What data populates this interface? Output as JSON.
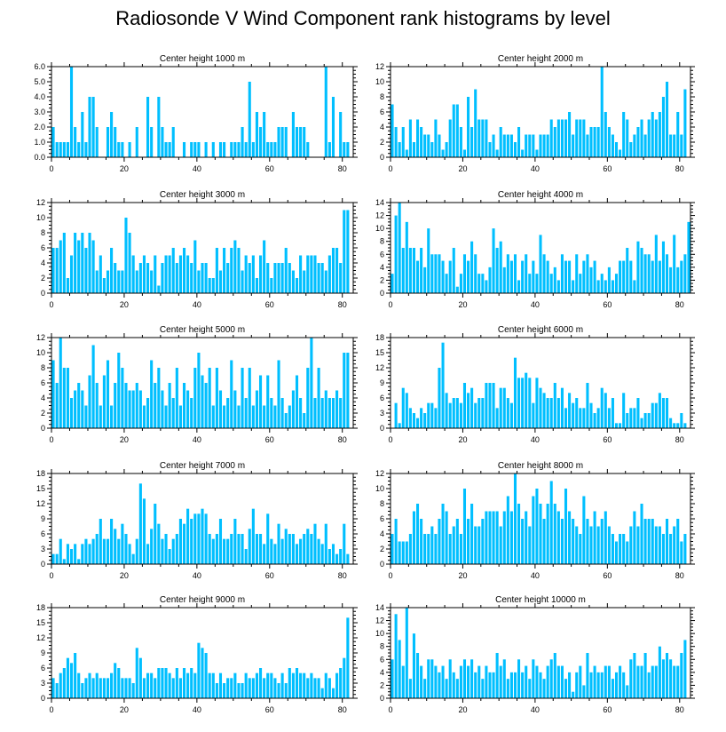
{
  "title": "Radiosonde V Wind Component rank histograms by level",
  "bar_color": "#00bfff",
  "chart_data": [
    {
      "type": "bar",
      "title": "Center height 1000 m",
      "xlim": [
        0,
        83
      ],
      "ylim": [
        0,
        6
      ],
      "yticks": [
        "0.0",
        "1.0",
        "2.0",
        "3.0",
        "4.0",
        "5.0",
        "6.0"
      ],
      "ytick_values": [
        0,
        1,
        2,
        3,
        4,
        5,
        6
      ],
      "xticks": [
        "0",
        "20",
        "40",
        "60",
        "80"
      ],
      "xtick_values": [
        0,
        20,
        40,
        60,
        80
      ],
      "values": [
        2,
        1,
        1,
        1,
        1,
        6,
        2,
        1,
        3,
        1,
        4,
        4,
        2,
        0,
        0,
        2,
        3,
        2,
        1,
        1,
        0,
        1,
        0,
        2,
        0,
        0,
        4,
        2,
        0,
        4,
        2,
        1,
        1,
        2,
        0,
        0,
        1,
        0,
        1,
        1,
        1,
        0,
        1,
        0,
        1,
        0,
        1,
        1,
        0,
        1,
        1,
        1,
        2,
        1,
        5,
        1,
        3,
        2,
        3,
        1,
        1,
        1,
        2,
        2,
        2,
        0,
        3,
        2,
        2,
        2,
        1,
        0,
        0,
        0,
        0,
        6,
        1,
        4,
        0,
        3,
        1,
        1
      ]
    },
    {
      "type": "bar",
      "title": "Center height 2000 m",
      "xlim": [
        0,
        83
      ],
      "ylim": [
        0,
        12
      ],
      "yticks": [
        "0",
        "2",
        "4",
        "6",
        "8",
        "10",
        "12"
      ],
      "ytick_values": [
        0,
        2,
        4,
        6,
        8,
        10,
        12
      ],
      "xticks": [
        "0",
        "20",
        "40",
        "60",
        "80"
      ],
      "xtick_values": [
        0,
        20,
        40,
        60,
        80
      ],
      "values": [
        7,
        4,
        2,
        4,
        1,
        5,
        2,
        5,
        4,
        3,
        3,
        2,
        5,
        3,
        1,
        2,
        5,
        7,
        7,
        4,
        1,
        8,
        4,
        9,
        5,
        5,
        5,
        2,
        3,
        1,
        4,
        3,
        3,
        3,
        2,
        4,
        1,
        3,
        3,
        3,
        1,
        3,
        3,
        3,
        5,
        4,
        5,
        5,
        5,
        6,
        3,
        5,
        5,
        5,
        3,
        4,
        4,
        4,
        12,
        6,
        4,
        3,
        2,
        1,
        6,
        5,
        2,
        3,
        4,
        5,
        3,
        5,
        6,
        5,
        6,
        8,
        10,
        3,
        3,
        6,
        3,
        9
      ]
    },
    {
      "type": "bar",
      "title": "Center height 3000 m",
      "xlim": [
        0,
        83
      ],
      "ylim": [
        0,
        12
      ],
      "yticks": [
        "0",
        "2",
        "4",
        "6",
        "8",
        "10",
        "12"
      ],
      "ytick_values": [
        0,
        2,
        4,
        6,
        8,
        10,
        12
      ],
      "xticks": [
        "0",
        "20",
        "40",
        "60",
        "80"
      ],
      "xtick_values": [
        0,
        20,
        40,
        60,
        80
      ],
      "values": [
        6,
        6,
        7,
        8,
        2,
        5,
        8,
        7,
        8,
        6,
        8,
        7,
        3,
        5,
        2,
        3,
        6,
        4,
        3,
        3,
        10,
        8,
        5,
        3,
        4,
        5,
        4,
        3,
        5,
        1,
        4,
        5,
        5,
        6,
        4,
        5,
        6,
        5,
        4,
        7,
        3,
        4,
        4,
        2,
        2,
        6,
        3,
        6,
        4,
        6,
        7,
        6,
        3,
        5,
        4,
        5,
        2,
        5,
        7,
        4,
        2,
        4,
        4,
        4,
        6,
        4,
        3,
        2,
        5,
        3,
        5,
        5,
        5,
        4,
        4,
        3,
        5,
        6,
        6,
        4,
        11,
        11
      ]
    },
    {
      "type": "bar",
      "title": "Center height 4000 m",
      "xlim": [
        0,
        83
      ],
      "ylim": [
        0,
        14
      ],
      "yticks": [
        "0",
        "2",
        "4",
        "6",
        "8",
        "10",
        "12",
        "14"
      ],
      "ytick_values": [
        0,
        2,
        4,
        6,
        8,
        10,
        12,
        14
      ],
      "xticks": [
        "0",
        "20",
        "40",
        "60",
        "80"
      ],
      "xtick_values": [
        0,
        20,
        40,
        60,
        80
      ],
      "values": [
        3,
        12,
        14,
        7,
        11,
        7,
        7,
        5,
        7,
        4,
        10,
        6,
        6,
        6,
        5,
        3,
        5,
        7,
        1,
        3,
        6,
        5,
        8,
        6,
        3,
        3,
        2,
        4,
        10,
        7,
        8,
        4,
        6,
        5,
        6,
        2,
        5,
        6,
        3,
        5,
        3,
        9,
        6,
        5,
        3,
        4,
        2,
        6,
        5,
        5,
        2,
        6,
        3,
        5,
        6,
        4,
        5,
        2,
        3,
        2,
        4,
        2,
        3,
        5,
        5,
        7,
        5,
        2,
        8,
        7,
        6,
        6,
        5,
        9,
        5,
        8,
        6,
        4,
        9,
        4,
        5,
        6,
        11
      ]
    },
    {
      "type": "bar",
      "title": "Center height 5000 m",
      "xlim": [
        0,
        83
      ],
      "ylim": [
        0,
        12
      ],
      "yticks": [
        "0",
        "2",
        "4",
        "6",
        "8",
        "10",
        "12"
      ],
      "ytick_values": [
        0,
        2,
        4,
        6,
        8,
        10,
        12
      ],
      "xticks": [
        "0",
        "20",
        "40",
        "60",
        "80"
      ],
      "xtick_values": [
        0,
        20,
        40,
        60,
        80
      ],
      "values": [
        9,
        6,
        12,
        8,
        8,
        4,
        5,
        6,
        5,
        3,
        7,
        11,
        6,
        3,
        7,
        9,
        3,
        6,
        10,
        8,
        6,
        5,
        5,
        6,
        5,
        3,
        4,
        9,
        6,
        8,
        5,
        3,
        6,
        4,
        8,
        3,
        6,
        5,
        4,
        8,
        10,
        7,
        6,
        8,
        3,
        8,
        5,
        3,
        4,
        9,
        5,
        3,
        8,
        4,
        8,
        3,
        5,
        7,
        3,
        7,
        4,
        3,
        9,
        4,
        2,
        3,
        5,
        7,
        4,
        2,
        8,
        12,
        4,
        8,
        4,
        5,
        4,
        4,
        5,
        4,
        10,
        10
      ]
    },
    {
      "type": "bar",
      "title": "Center height 6000 m",
      "xlim": [
        0,
        83
      ],
      "ylim": [
        0,
        18
      ],
      "yticks": [
        "0",
        "3",
        "6",
        "9",
        "12",
        "15",
        "18"
      ],
      "ytick_values": [
        0,
        3,
        6,
        9,
        12,
        15,
        18
      ],
      "xticks": [
        "0",
        "20",
        "40",
        "60",
        "80"
      ],
      "xtick_values": [
        0,
        20,
        40,
        60,
        80
      ],
      "values": [
        0,
        5,
        1,
        8,
        7,
        4,
        3,
        2,
        4,
        3,
        5,
        5,
        4,
        12,
        17,
        7,
        5,
        6,
        6,
        5,
        9,
        7,
        8,
        5,
        6,
        6,
        9,
        9,
        9,
        4,
        8,
        8,
        6,
        5,
        14,
        10,
        10,
        11,
        10,
        5,
        10,
        8,
        7,
        6,
        6,
        9,
        6,
        8,
        4,
        7,
        5,
        6,
        4,
        4,
        9,
        5,
        3,
        4,
        8,
        7,
        4,
        6,
        1,
        1,
        7,
        3,
        4,
        4,
        6,
        2,
        3,
        3,
        5,
        5,
        7,
        6,
        6,
        2,
        1,
        1,
        3,
        1
      ]
    },
    {
      "type": "bar",
      "title": "Center height 7000 m",
      "xlim": [
        0,
        83
      ],
      "ylim": [
        0,
        18
      ],
      "yticks": [
        "0",
        "3",
        "6",
        "9",
        "12",
        "15",
        "18"
      ],
      "ytick_values": [
        0,
        3,
        6,
        9,
        12,
        15,
        18
      ],
      "xticks": [
        "0",
        "20",
        "40",
        "60",
        "80"
      ],
      "xtick_values": [
        0,
        20,
        40,
        60,
        80
      ],
      "values": [
        2,
        2,
        5,
        1,
        4,
        3,
        4,
        1,
        4,
        5,
        4,
        5,
        6,
        9,
        5,
        5,
        9,
        7,
        5,
        8,
        6,
        4,
        2,
        5,
        16,
        13,
        4,
        7,
        12,
        8,
        5,
        6,
        3,
        5,
        6,
        9,
        8,
        11,
        9,
        10,
        10,
        11,
        10,
        6,
        5,
        6,
        9,
        5,
        5,
        6,
        9,
        6,
        6,
        3,
        7,
        11,
        6,
        6,
        4,
        10,
        5,
        4,
        8,
        5,
        7,
        6,
        6,
        4,
        5,
        6,
        7,
        6,
        8,
        5,
        4,
        8,
        3,
        4,
        2,
        3,
        8,
        2
      ]
    },
    {
      "type": "bar",
      "title": "Center height 8000 m",
      "xlim": [
        0,
        83
      ],
      "ylim": [
        0,
        12
      ],
      "yticks": [
        "0",
        "2",
        "4",
        "6",
        "8",
        "10",
        "12"
      ],
      "ytick_values": [
        0,
        2,
        4,
        6,
        8,
        10,
        12
      ],
      "xticks": [
        "0",
        "20",
        "40",
        "60",
        "80"
      ],
      "xtick_values": [
        0,
        20,
        40,
        60,
        80
      ],
      "values": [
        4,
        6,
        3,
        3,
        3,
        4,
        7,
        8,
        6,
        4,
        4,
        5,
        4,
        6,
        8,
        7,
        4,
        5,
        6,
        4,
        10,
        6,
        8,
        5,
        5,
        6,
        7,
        7,
        7,
        7,
        5,
        7,
        9,
        7,
        12,
        8,
        6,
        7,
        5,
        9,
        10,
        8,
        6,
        8,
        11,
        8,
        7,
        6,
        10,
        7,
        6,
        5,
        4,
        9,
        6,
        5,
        7,
        5,
        6,
        7,
        5,
        4,
        3,
        4,
        4,
        3,
        5,
        7,
        5,
        8,
        6,
        6,
        6,
        5,
        5,
        4,
        6,
        4,
        5,
        6,
        3,
        4
      ]
    },
    {
      "type": "bar",
      "title": "Center height 9000 m",
      "xlim": [
        0,
        83
      ],
      "ylim": [
        0,
        18
      ],
      "yticks": [
        "0",
        "3",
        "6",
        "9",
        "12",
        "15",
        "18"
      ],
      "ytick_values": [
        0,
        3,
        6,
        9,
        12,
        15,
        18
      ],
      "xticks": [
        "0",
        "20",
        "40",
        "60",
        "80"
      ],
      "xtick_values": [
        0,
        20,
        40,
        60,
        80
      ],
      "values": [
        4,
        3,
        5,
        6,
        8,
        7,
        9,
        5,
        3,
        4,
        5,
        4,
        5,
        4,
        4,
        4,
        5,
        7,
        6,
        4,
        4,
        4,
        3,
        10,
        8,
        4,
        5,
        5,
        4,
        6,
        6,
        6,
        5,
        4,
        6,
        4,
        6,
        5,
        6,
        5,
        11,
        10,
        9,
        5,
        5,
        3,
        5,
        3,
        4,
        4,
        5,
        3,
        3,
        5,
        4,
        4,
        5,
        6,
        4,
        5,
        5,
        4,
        3,
        5,
        3,
        6,
        5,
        6,
        5,
        5,
        4,
        5,
        4,
        4,
        2,
        5,
        4,
        2,
        5,
        6,
        8,
        16
      ]
    },
    {
      "type": "bar",
      "title": "Center height 10000 m",
      "xlim": [
        0,
        83
      ],
      "ylim": [
        0,
        14
      ],
      "yticks": [
        "0",
        "2",
        "4",
        "6",
        "8",
        "10",
        "12",
        "14"
      ],
      "ytick_values": [
        0,
        2,
        4,
        6,
        8,
        10,
        12,
        14
      ],
      "xticks": [
        "0",
        "20",
        "40",
        "60",
        "80"
      ],
      "xtick_values": [
        0,
        20,
        40,
        60,
        80
      ],
      "values": [
        6,
        13,
        9,
        5,
        14,
        3,
        10,
        7,
        5,
        3,
        6,
        6,
        5,
        4,
        5,
        3,
        6,
        4,
        3,
        5,
        6,
        5,
        6,
        4,
        5,
        3,
        5,
        4,
        4,
        7,
        5,
        6,
        3,
        4,
        4,
        6,
        4,
        5,
        3,
        6,
        5,
        4,
        3,
        5,
        6,
        7,
        5,
        5,
        3,
        4,
        1,
        4,
        5,
        2,
        7,
        4,
        5,
        4,
        4,
        5,
        5,
        3,
        4,
        5,
        4,
        2,
        6,
        7,
        5,
        5,
        7,
        4,
        5,
        5,
        8,
        6,
        7,
        6,
        5,
        5,
        7,
        9
      ]
    }
  ]
}
